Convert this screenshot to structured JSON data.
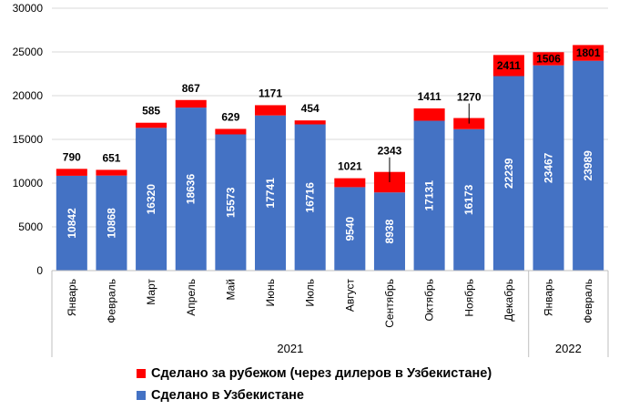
{
  "chart_data": {
    "type": "bar",
    "stacked": true,
    "categories": [
      "Январь",
      "Февраль",
      "Март",
      "Апрель",
      "Май",
      "Июнь",
      "Июль",
      "Август",
      "Сентябрь",
      "Октябрь",
      "Ноябрь",
      "Декабрь",
      "Январь",
      "Февраль"
    ],
    "year_groups": [
      {
        "label": "2021",
        "from": 0,
        "to": 11
      },
      {
        "label": "2022",
        "from": 12,
        "to": 13
      }
    ],
    "series": [
      {
        "name": "Сделано в Узбекистане",
        "color": "#4472C4",
        "values": [
          10842,
          10868,
          16320,
          18636,
          15573,
          17741,
          16716,
          9540,
          8938,
          17131,
          16173,
          22239,
          23467,
          23989
        ]
      },
      {
        "name": "Сделано за рубежом (через дилеров в Узбекистане)",
        "color": "#FF0000",
        "values": [
          790,
          651,
          585,
          867,
          629,
          1171,
          454,
          1021,
          2343,
          1411,
          1270,
          2411,
          1506,
          1801
        ]
      }
    ],
    "ylim": [
      0,
      30000
    ],
    "yticks": [
      0,
      5000,
      10000,
      15000,
      20000,
      25000,
      30000
    ],
    "grid": true,
    "legend_position": "bottom"
  }
}
